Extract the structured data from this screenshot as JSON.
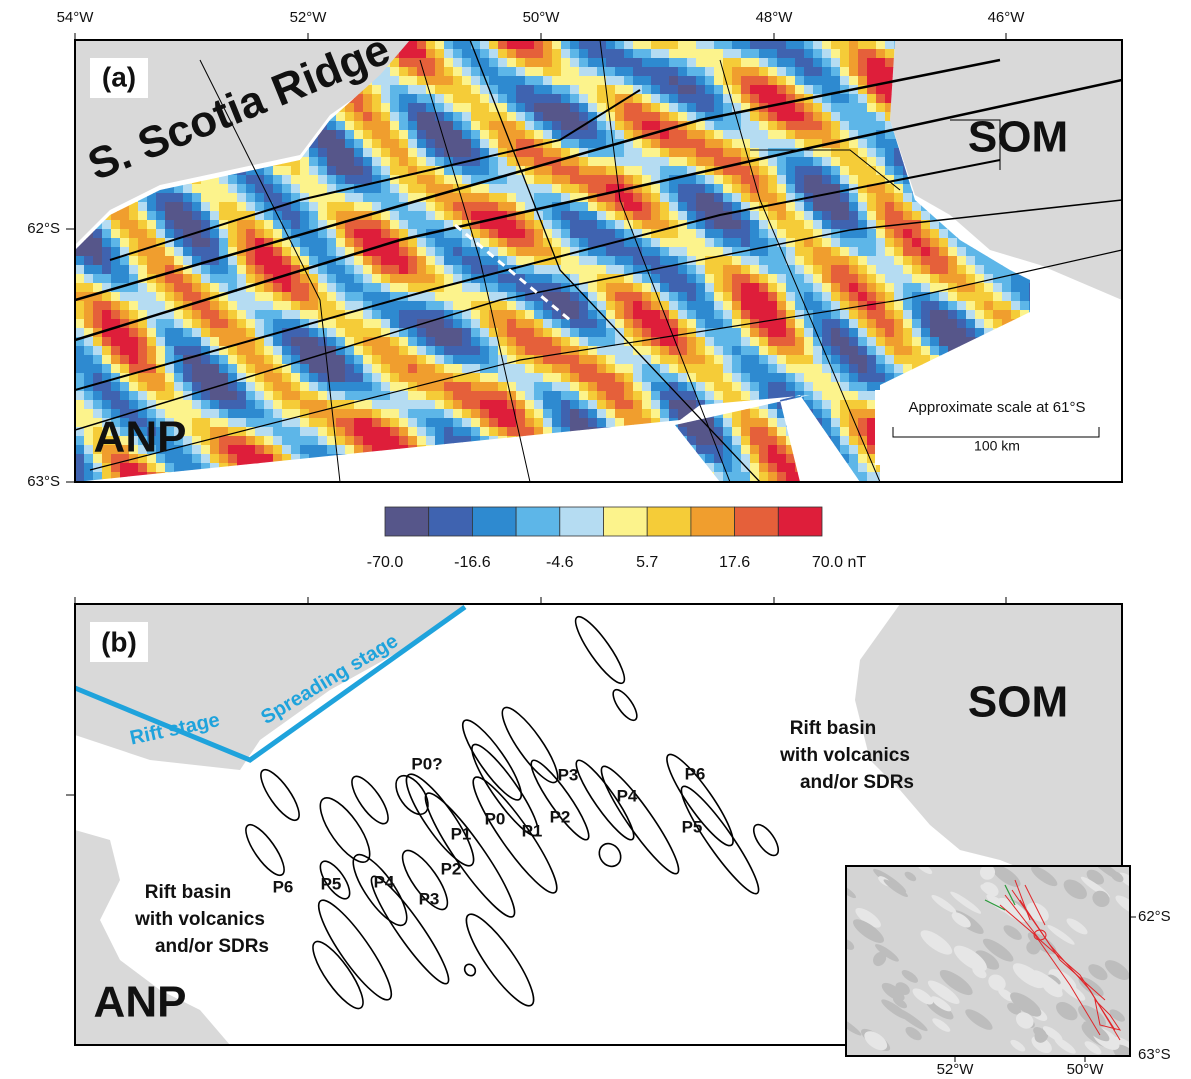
{
  "panel_a": {
    "label": "(a)",
    "lon_ticks": [
      "54°W",
      "52°W",
      "50°W",
      "48°W",
      "46°W"
    ],
    "lat_ticks": [
      "62°S",
      "63°S"
    ],
    "regions": [
      "S. Scotia Ridge",
      "SOM",
      "ANP"
    ],
    "scale": {
      "title": "Approximate scale at 61°S",
      "length": "100 km"
    }
  },
  "colorbar": {
    "labels": [
      "-70.0",
      "-16.6",
      "-4.6",
      "5.7",
      "17.6",
      "70.0 nT"
    ]
  },
  "panel_b": {
    "label": "(b)",
    "stages": [
      "Rift stage",
      "Spreading stage"
    ],
    "regions": [
      "SOM",
      "ANP"
    ],
    "rift_basins": [
      [
        "Rift basin",
        "with volcanics",
        "and/or SDRs"
      ],
      [
        "Rift basin",
        "with volcanics",
        "and/or SDRs"
      ]
    ],
    "picks": [
      "P0?",
      "P0",
      "P1",
      "P1",
      "P2",
      "P2",
      "P3",
      "P3",
      "P4",
      "P4",
      "P5",
      "P5",
      "P6",
      "P6"
    ]
  },
  "inset": {
    "lat_ticks": [
      "62°S",
      "63°S"
    ],
    "lon_ticks": [
      "52°W",
      "50°W"
    ]
  }
}
